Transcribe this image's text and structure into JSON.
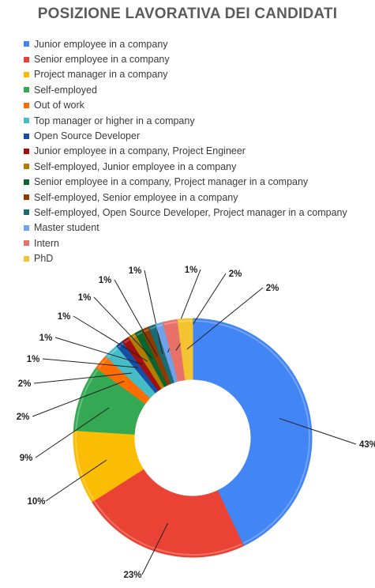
{
  "chart_data": {
    "type": "pie",
    "title": "POSIZIONE LAVORATIVA DEI CANDIDATI",
    "legend_position": "top",
    "donut": true,
    "slices": [
      {
        "label": "Junior employee in a company",
        "value": 43,
        "value_label": "43%",
        "color": "#4285f4"
      },
      {
        "label": "Senior employee in a company",
        "value": 23,
        "value_label": "23%",
        "color": "#ea4335"
      },
      {
        "label": "Project manager in a company",
        "value": 10,
        "value_label": "10%",
        "color": "#fbbc04"
      },
      {
        "label": "Self-employed",
        "value": 9,
        "value_label": "9%",
        "color": "#34a853"
      },
      {
        "label": "Out of work",
        "value": 2,
        "value_label": "2%",
        "color": "#ff6d01"
      },
      {
        "label": "Top manager or higher in a company",
        "value": 2,
        "value_label": "2%",
        "color": "#46bdc6"
      },
      {
        "label": "Open Source Developer",
        "value": 1,
        "value_label": "1%",
        "color": "#174ea6"
      },
      {
        "label": "Junior employee in a company, Project Engineer",
        "value": 1,
        "value_label": "1%",
        "color": "#a50e0e"
      },
      {
        "label": "Self-employed, Junior employee in a company",
        "value": 1,
        "value_label": "1%",
        "color": "#b07d00"
      },
      {
        "label": "Senior employee in a company, Project manager in a company",
        "value": 1,
        "value_label": "1%",
        "color": "#0d652d"
      },
      {
        "label": "Self-employed, Senior employee in a company",
        "value": 1,
        "value_label": "1%",
        "color": "#8f3b00"
      },
      {
        "label": "Self-employed, Open Source Developer, Project manager in a company",
        "value": 1,
        "value_label": "1%",
        "color": "#1b6b73"
      },
      {
        "label": "Master student",
        "value": 1,
        "value_label": "1%",
        "color": "#6fa2e8"
      },
      {
        "label": "Intern",
        "value": 2,
        "value_label": "2%",
        "color": "#e8726a"
      },
      {
        "label": "PhD",
        "value": 2,
        "value_label": "2%",
        "color": "#f4c430"
      }
    ]
  }
}
